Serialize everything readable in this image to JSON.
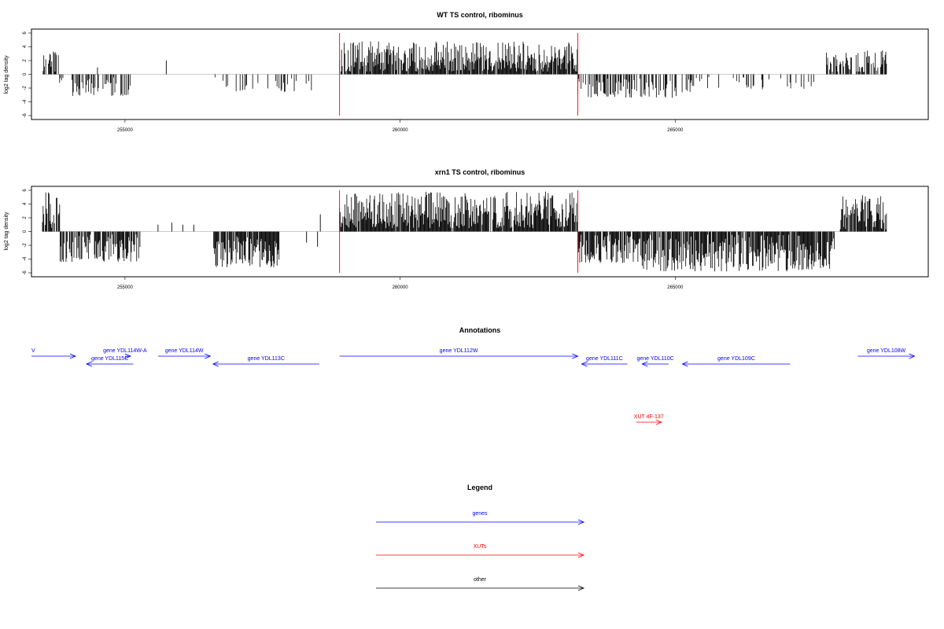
{
  "chart_data": [
    {
      "type": "bar",
      "title": "WT TS control, ribominus",
      "ylabel": "log2 tag density",
      "xlabel": "",
      "xlim": [
        253300,
        269600
      ],
      "ylim": [
        -6,
        6
      ],
      "x_ticks": [
        255000,
        260000,
        265000
      ],
      "x_tick_labels": [
        "255000",
        "260000",
        "265000"
      ],
      "y_ticks": [
        -6,
        -4,
        -2,
        0,
        2,
        4,
        6
      ],
      "y_tick_labels": [
        "-6",
        "-4",
        "-2",
        "0",
        "2",
        "4",
        "6"
      ],
      "markers_x": [
        258900,
        263230
      ],
      "colors": {
        "bars": "#000000",
        "markers": "#ff0000"
      },
      "grid": false,
      "segments": [
        {
          "start": 253500,
          "end": 253800,
          "min": 0.3,
          "max": 3.8,
          "density": 0.5,
          "seed": 11
        },
        {
          "start": 253800,
          "end": 253950,
          "min": -1.5,
          "max": -0.3,
          "density": 0.25,
          "seed": 12
        },
        {
          "start": 254000,
          "end": 255100,
          "min": -3.2,
          "max": -0.4,
          "density": 0.45,
          "seed": 13
        },
        {
          "start": 256600,
          "end": 258400,
          "min": -2.6,
          "max": -0.3,
          "density": 0.2,
          "seed": 14
        },
        {
          "start": 258900,
          "end": 263230,
          "min": 0.4,
          "max": 4.8,
          "density": 0.85,
          "seed": 15
        },
        {
          "start": 263230,
          "end": 265300,
          "min": -3.4,
          "max": -0.5,
          "density": 0.5,
          "seed": 16
        },
        {
          "start": 265300,
          "end": 267600,
          "min": -2.2,
          "max": -0.4,
          "density": 0.15,
          "seed": 17
        },
        {
          "start": 267700,
          "end": 268850,
          "min": 0.3,
          "max": 3.6,
          "density": 0.6,
          "seed": 18
        }
      ],
      "isolated_bars": [
        {
          "x": 253700,
          "y": 3.3
        },
        {
          "x": 254500,
          "y": 1.0
        },
        {
          "x": 255750,
          "y": 2.0
        }
      ]
    },
    {
      "type": "bar",
      "title": "xrn1 TS control, ribominus",
      "ylabel": "log2 tag density",
      "xlabel": "",
      "xlim": [
        253300,
        269600
      ],
      "ylim": [
        -6,
        6
      ],
      "x_ticks": [
        255000,
        260000,
        265000
      ],
      "x_tick_labels": [
        "255000",
        "260000",
        "265000"
      ],
      "y_ticks": [
        -6,
        -4,
        -2,
        0,
        2,
        4,
        6
      ],
      "y_tick_labels": [
        "-6",
        "-4",
        "-2",
        "0",
        "2",
        "4",
        "6"
      ],
      "markers_x": [
        258900,
        263230
      ],
      "colors": {
        "bars": "#000000",
        "markers": "#ff0000"
      },
      "grid": false,
      "segments": [
        {
          "start": 253500,
          "end": 253820,
          "min": 0.5,
          "max": 5.7,
          "density": 0.85,
          "seed": 21
        },
        {
          "start": 253820,
          "end": 255280,
          "min": -4.4,
          "max": -0.4,
          "density": 0.75,
          "seed": 22
        },
        {
          "start": 256600,
          "end": 257800,
          "min": -5.2,
          "max": -0.6,
          "density": 0.85,
          "seed": 23
        },
        {
          "start": 258900,
          "end": 263230,
          "min": 0.5,
          "max": 5.8,
          "density": 0.95,
          "seed": 24
        },
        {
          "start": 263230,
          "end": 264400,
          "min": -4.6,
          "max": -0.4,
          "density": 0.85,
          "seed": 25
        },
        {
          "start": 264400,
          "end": 267900,
          "min": -5.8,
          "max": -0.4,
          "density": 0.85,
          "seed": 26
        },
        {
          "start": 268000,
          "end": 268850,
          "min": 0.3,
          "max": 5.4,
          "density": 0.8,
          "seed": 27
        }
      ],
      "isolated_bars": [
        {
          "x": 255600,
          "y": 1.0
        },
        {
          "x": 255850,
          "y": 1.3
        },
        {
          "x": 256050,
          "y": 1.0
        },
        {
          "x": 256250,
          "y": 1.0
        },
        {
          "x": 258300,
          "y": -1.6
        },
        {
          "x": 258500,
          "y": -2.2
        },
        {
          "x": 258550,
          "y": 2.5
        }
      ]
    }
  ],
  "annotations": {
    "title": "Annotations",
    "features": [
      {
        "label": "V",
        "start": 253300,
        "end": 254100,
        "strand": "+",
        "row": 0,
        "color": "#0000ff",
        "label_x": 253300,
        "label_align": "start"
      },
      {
        "label": "gene YDL114W-A",
        "start": 255000,
        "end": 255100,
        "strand": "+",
        "row": 0,
        "color": "#0000ff",
        "label_x": 255000,
        "label_align": "middle"
      },
      {
        "label": "gene YDL114W",
        "start": 255600,
        "end": 256550,
        "strand": "+",
        "row": 0,
        "color": "#0000ff",
        "label_x": 256075,
        "label_align": "middle"
      },
      {
        "label": "gene YDL115C",
        "start": 254300,
        "end": 255150,
        "strand": "-",
        "row": 1,
        "color": "#0000ff",
        "label_x": 254725,
        "label_align": "middle"
      },
      {
        "label": "gene YDL113C",
        "start": 256600,
        "end": 258530,
        "strand": "-",
        "row": 1,
        "color": "#0000ff",
        "label_x": 257565,
        "label_align": "middle"
      },
      {
        "label": "gene YDL112W",
        "start": 258900,
        "end": 263230,
        "strand": "+",
        "row": 0,
        "color": "#0000ff",
        "label_x": 261065,
        "label_align": "middle"
      },
      {
        "label": "gene YDL111C",
        "start": 263300,
        "end": 264130,
        "strand": "-",
        "row": 1,
        "color": "#0000ff",
        "label_x": 263715,
        "label_align": "middle"
      },
      {
        "label": "gene YDL110C",
        "start": 264400,
        "end": 264880,
        "strand": "-",
        "row": 1,
        "color": "#0000ff",
        "label_x": 264640,
        "label_align": "middle"
      },
      {
        "label": "gene YDL109C",
        "start": 265130,
        "end": 267090,
        "strand": "-",
        "row": 1,
        "color": "#0000ff",
        "label_x": 266110,
        "label_align": "middle"
      },
      {
        "label": "gene YDL108W",
        "start": 268320,
        "end": 269350,
        "strand": "+",
        "row": 0,
        "color": "#0000ff",
        "label_x": 268835,
        "label_align": "middle"
      },
      {
        "label": "XUT 4F-137",
        "start": 264290,
        "end": 264750,
        "strand": "+",
        "row": 2,
        "color": "#ff0000",
        "label_x": 264520,
        "label_align": "middle"
      }
    ]
  },
  "legend": {
    "title": "Legend",
    "items": [
      {
        "label": "genes",
        "color": "#0000ff"
      },
      {
        "label": "XUTs",
        "color": "#ff0000"
      },
      {
        "label": "other",
        "color": "#000000"
      }
    ]
  }
}
